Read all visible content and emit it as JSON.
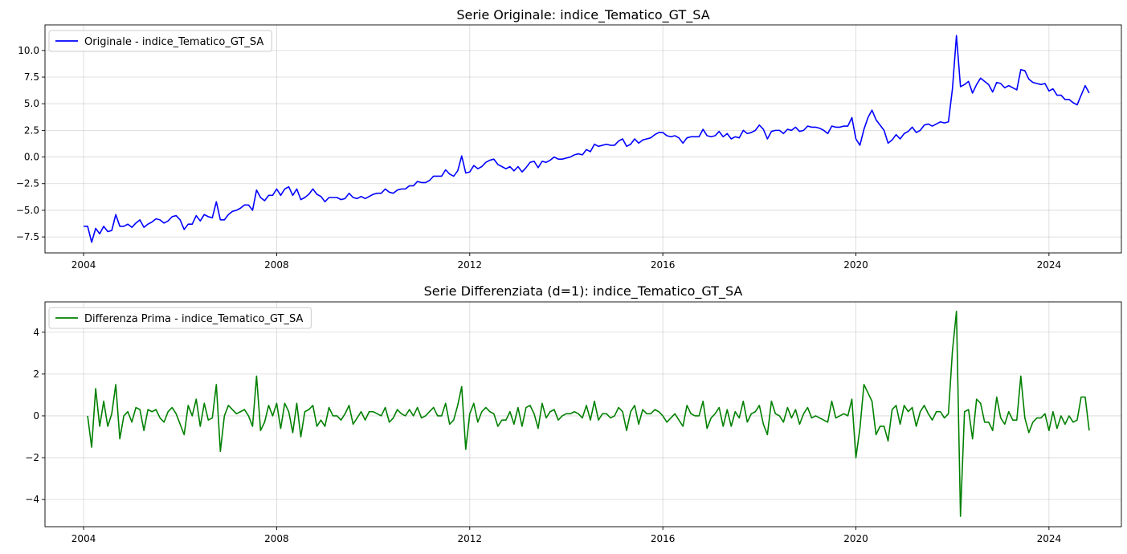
{
  "charts": [
    {
      "type": "line",
      "title": "Serie Originale: indice_Tematico_GT_SA",
      "legend": "Originale - indice_Tematico_GT_SA",
      "legend_position": "top-left",
      "color": "#0000ff",
      "grid": true,
      "xlim": [
        2003.2,
        2025.5
      ],
      "ylim": [
        -9.0,
        12.4
      ],
      "x_ticks": [
        2004,
        2008,
        2012,
        2016,
        2020,
        2024
      ],
      "x_tick_labels": [
        "2004",
        "2008",
        "2012",
        "2016",
        "2020",
        "2024"
      ],
      "y_ticks": [
        -7.5,
        -5.0,
        -2.5,
        0.0,
        2.5,
        5.0,
        7.5,
        10.0
      ],
      "y_tick_labels": [
        "−7.5",
        "−5.0",
        "−2.5",
        "0.0",
        "2.5",
        "5.0",
        "7.5",
        "10.0"
      ],
      "x": [],
      "y": []
    },
    {
      "type": "line",
      "title": "Serie Differenziata (d=1): indice_Tematico_GT_SA",
      "legend": "Differenza Prima - indice_Tematico_GT_SA",
      "legend_position": "top-left",
      "color": "#008000",
      "grid": true,
      "xlim": [
        2003.2,
        2025.5
      ],
      "ylim": [
        -5.3,
        5.45
      ],
      "x_ticks": [
        2004,
        2008,
        2012,
        2016,
        2020,
        2024
      ],
      "x_tick_labels": [
        "2004",
        "2008",
        "2012",
        "2016",
        "2020",
        "2024"
      ],
      "y_ticks": [
        -4,
        -2,
        0,
        2,
        4
      ],
      "y_tick_labels": [
        "−4",
        "−2",
        "0",
        "2",
        "4"
      ],
      "x": [],
      "y": []
    }
  ],
  "chart_data": [
    {
      "type": "line",
      "title": "Serie Originale: indice_Tematico_GT_SA",
      "series": [
        {
          "name": "Originale - indice_Tematico_GT_SA"
        }
      ],
      "start": "2004-01",
      "frequency": "monthly",
      "xlim": [
        2003.2,
        2025.5
      ],
      "ylim": [
        -9.0,
        12.4
      ],
      "grid": true,
      "legend_position": "top-left",
      "values": [
        -6.5,
        -6.5,
        -8.0,
        -6.7,
        -7.2,
        -6.5,
        -7.0,
        -6.9,
        -5.4,
        -6.5,
        -6.5,
        -6.3,
        -6.6,
        -6.2,
        -5.9,
        -6.6,
        -6.3,
        -6.1,
        -5.8,
        -5.9,
        -6.2,
        -6.0,
        -5.6,
        -5.5,
        -5.9,
        -6.8,
        -6.3,
        -6.3,
        -5.5,
        -6.0,
        -5.4,
        -5.6,
        -5.7,
        -4.2,
        -5.9,
        -5.9,
        -5.4,
        -5.1,
        -5.0,
        -4.8,
        -4.5,
        -4.5,
        -5.0,
        -3.1,
        -3.8,
        -4.1,
        -3.6,
        -3.6,
        -3.0,
        -3.6,
        -3.0,
        -2.8,
        -3.6,
        -3.0,
        -4.0,
        -3.8,
        -3.5,
        -3.0,
        -3.5,
        -3.7,
        -4.2,
        -3.8,
        -3.8,
        -3.8,
        -4.0,
        -3.9,
        -3.4,
        -3.8,
        -3.9,
        -3.7,
        -3.9,
        -3.7,
        -3.5,
        -3.4,
        -3.4,
        -3.0,
        -3.3,
        -3.4,
        -3.1,
        -3.0,
        -3.0,
        -2.7,
        -2.7,
        -2.3,
        -2.4,
        -2.4,
        -2.2,
        -1.8,
        -1.8,
        -1.8,
        -1.2,
        -1.6,
        -1.8,
        -1.3,
        0.1,
        -1.5,
        -1.4,
        -0.8,
        -1.1,
        -0.9,
        -0.5,
        -0.3,
        -0.2,
        -0.7,
        -0.9,
        -1.1,
        -0.9,
        -1.3,
        -0.9,
        -1.4,
        -1.0,
        -0.5,
        -0.4,
        -1.0,
        -0.4,
        -0.5,
        -0.3,
        0.0,
        -0.2,
        -0.2,
        -0.1,
        0.0,
        0.2,
        0.3,
        0.2,
        0.7,
        0.5,
        1.2,
        1.0,
        1.1,
        1.2,
        1.1,
        1.1,
        1.5,
        1.7,
        1.0,
        1.2,
        1.7,
        1.3,
        1.6,
        1.7,
        1.8,
        2.1,
        2.3,
        2.3,
        2.0,
        1.9,
        2.0,
        1.8,
        1.3,
        1.8,
        1.9,
        1.9,
        1.9,
        2.6,
        2.0,
        1.9,
        2.0,
        2.4,
        1.9,
        2.2,
        1.7,
        1.9,
        1.8,
        2.5,
        2.2,
        2.3,
        2.5,
        3.0,
        2.6,
        1.7,
        2.4,
        2.5,
        2.5,
        2.2,
        2.6,
        2.5,
        2.8,
        2.4,
        2.5,
        2.9,
        2.8,
        2.8,
        2.7,
        2.5,
        2.2,
        2.9,
        2.8,
        2.8,
        2.9,
        2.9,
        3.7,
        1.7,
        1.1,
        2.6,
        3.7,
        4.4,
        3.5,
        3.0,
        2.5,
        1.3,
        1.6,
        2.1,
        1.7,
        2.2,
        2.4,
        2.8,
        2.3,
        2.5,
        3.0,
        3.1,
        2.9,
        3.1,
        3.3,
        3.2,
        3.3,
        6.4,
        11.4,
        6.6,
        6.8,
        7.1,
        6.0,
        6.8,
        7.4,
        7.1,
        6.8,
        6.1,
        7.0,
        6.9,
        6.5,
        6.7,
        6.5,
        6.3,
        8.2,
        8.1,
        7.3,
        7.0,
        6.9,
        6.8,
        6.9,
        6.2,
        6.4,
        5.8,
        5.8,
        5.4,
        5.4,
        5.1,
        4.9,
        5.8,
        6.7,
        6.0
      ]
    },
    {
      "type": "line",
      "title": "Serie Differenziata (d=1): indice_Tematico_GT_SA",
      "series": [
        {
          "name": "Differenza Prima - indice_Tematico_GT_SA"
        }
      ],
      "start": "2004-02",
      "frequency": "monthly",
      "xlim": [
        2003.2,
        2025.5
      ],
      "ylim": [
        -5.3,
        5.45
      ],
      "grid": true,
      "legend_position": "top-left",
      "note": "first difference of the original series"
    }
  ]
}
